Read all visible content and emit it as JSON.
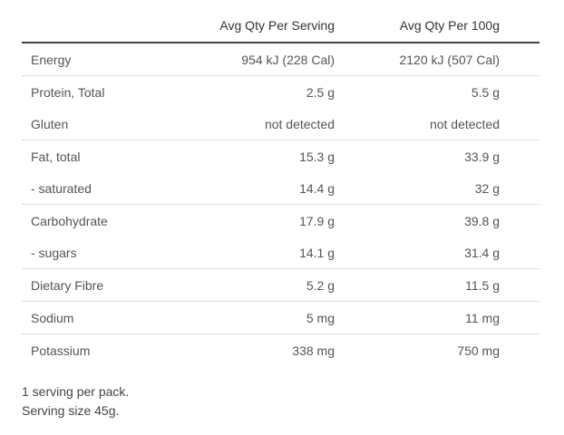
{
  "table": {
    "headers": {
      "name": "",
      "per_serving": "Avg Qty Per Serving",
      "per_100g": "Avg Qty Per 100g"
    },
    "rows": [
      {
        "name": "Energy",
        "per_serving": "954 kJ (228 Cal)",
        "per_100g": "2120 kJ (507 Cal)"
      },
      {
        "name": "Protein, Total",
        "per_serving": "2.5 g",
        "per_100g": "5.5 g"
      },
      {
        "name": "Gluten",
        "per_serving": "not detected",
        "per_100g": "not detected"
      },
      {
        "name": "Fat, total",
        "per_serving": "15.3 g",
        "per_100g": "33.9 g"
      },
      {
        "name": "- saturated",
        "per_serving": "14.4 g",
        "per_100g": "32 g"
      },
      {
        "name": "Carbohydrate",
        "per_serving": "17.9 g",
        "per_100g": "39.8 g"
      },
      {
        "name": "- sugars",
        "per_serving": "14.1 g",
        "per_100g": "31.4 g"
      },
      {
        "name": "Dietary Fibre",
        "per_serving": "5.2 g",
        "per_100g": "11.5 g"
      },
      {
        "name": "Sodium",
        "per_serving": "5 mg",
        "per_100g": "11 mg"
      },
      {
        "name": "Potassium",
        "per_serving": "338 mg",
        "per_100g": "750 mg"
      }
    ]
  },
  "footer": {
    "servings_per_pack": "1 serving per pack.",
    "serving_size": "Serving size 45g."
  }
}
